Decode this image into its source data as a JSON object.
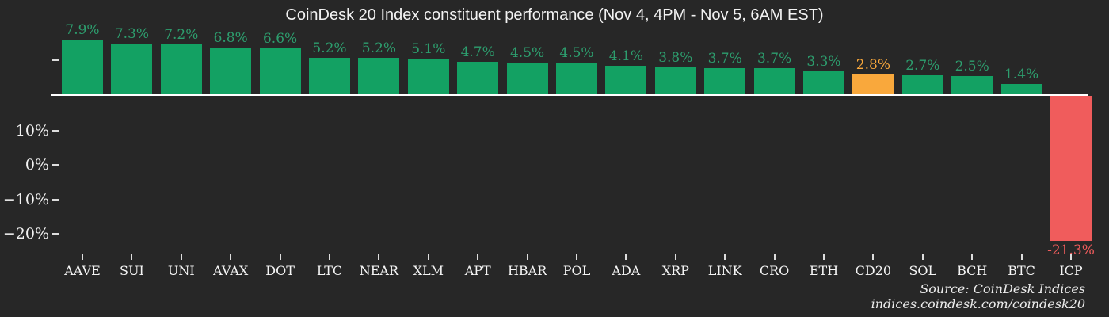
{
  "title": "CoinDesk 20 Index constituent performance (Nov 4, 4PM - Nov 5, 6AM EST)",
  "source": {
    "line1": "Source: CoinDesk Indices",
    "line2": "indices.coindesk.com/coindesk20"
  },
  "colors": {
    "background": "#272727",
    "positive_bar": "#13a163",
    "positive_label": "#2d9e6e",
    "index_bar": "#f9a83c",
    "index_label": "#f9a83c",
    "negative_bar": "#f05c5c",
    "negative_label": "#f05c5c",
    "baseline": "#ffffff",
    "axis_text": "#f2f2f2"
  },
  "chart_data": {
    "type": "bar",
    "title": "CoinDesk 20 Index constituent performance (Nov 4, 4PM - Nov 5, 6AM EST)",
    "categories": [
      "AAVE",
      "SUI",
      "UNI",
      "AVAX",
      "DOT",
      "LTC",
      "NEAR",
      "XLM",
      "APT",
      "HBAR",
      "POL",
      "ADA",
      "XRP",
      "LINK",
      "CRO",
      "ETH",
      "CD20",
      "SOL",
      "BCH",
      "BTC",
      "ICP"
    ],
    "values": [
      7.9,
      7.3,
      7.2,
      6.8,
      6.6,
      5.2,
      5.2,
      5.1,
      4.7,
      4.5,
      4.5,
      4.1,
      3.8,
      3.7,
      3.7,
      3.3,
      2.8,
      2.7,
      2.5,
      1.4,
      -21.3
    ],
    "value_labels": [
      "7.9%",
      "7.3%",
      "7.2%",
      "6.8%",
      "6.6%",
      "5.2%",
      "5.2%",
      "5.1%",
      "4.7%",
      "4.5%",
      "4.5%",
      "4.1%",
      "3.8%",
      "3.7%",
      "3.7%",
      "3.3%",
      "2.8%",
      "2.7%",
      "2.5%",
      "1.4%",
      "-21.3%"
    ],
    "bar_types": [
      "gain",
      "gain",
      "gain",
      "gain",
      "gain",
      "gain",
      "gain",
      "gain",
      "gain",
      "gain",
      "gain",
      "gain",
      "gain",
      "gain",
      "gain",
      "gain",
      "index",
      "gain",
      "gain",
      "gain",
      "loss"
    ],
    "y_tick_labels": [
      "",
      "10%",
      "0%",
      "−10%",
      "−20%"
    ],
    "xlabel": "",
    "ylabel": "",
    "grid": false,
    "legend": "none"
  }
}
